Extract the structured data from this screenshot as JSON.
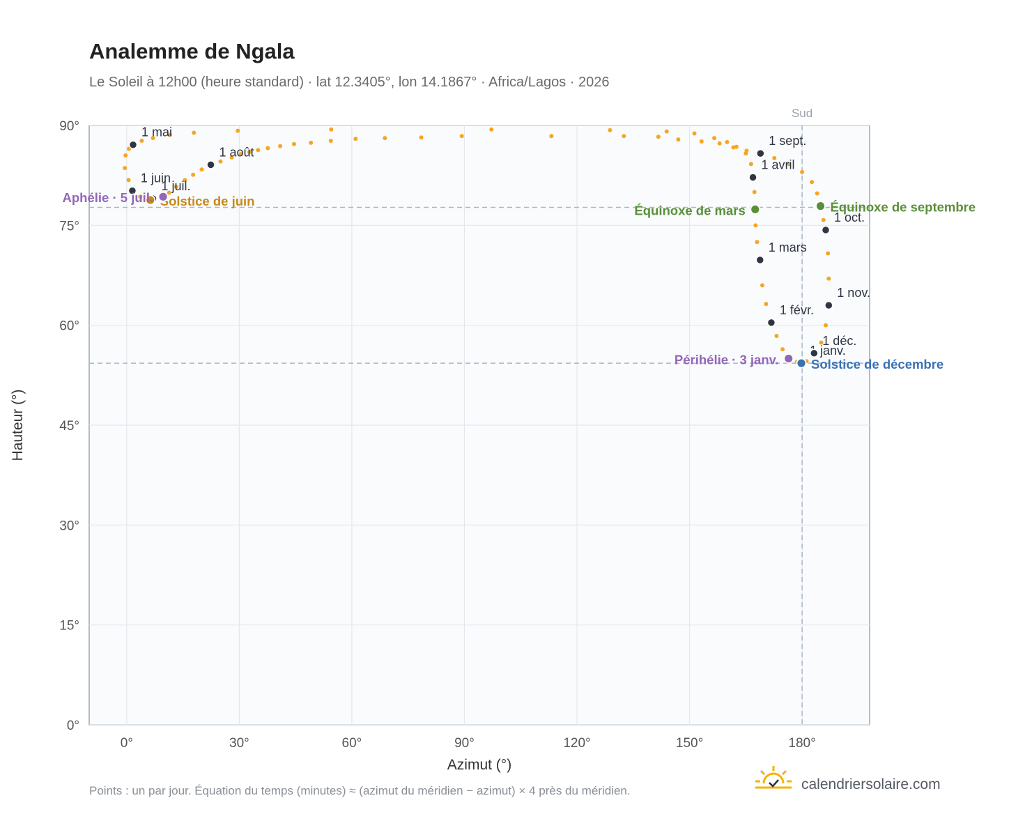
{
  "chart_data": {
    "type": "scatter",
    "title": "Analemme de Ngala",
    "subtitle": "Le Soleil à 12h00 (heure standard) · lat 12.3405°, lon 14.1867° · Africa/Lagos · 2026",
    "xlabel": "Azimut (°)",
    "ylabel": "Hauteur (°)",
    "xlim": [
      -10,
      198
    ],
    "ylim": [
      0,
      90
    ],
    "x_ticks": [
      0,
      30,
      60,
      90,
      120,
      150,
      180
    ],
    "x_tick_labels": [
      "0°",
      "30°",
      "60°",
      "90°",
      "120°",
      "150°",
      "180°"
    ],
    "y_ticks": [
      0,
      15,
      30,
      45,
      60,
      75,
      90
    ],
    "y_tick_labels": [
      "0°",
      "15°",
      "30°",
      "45°",
      "60°",
      "75°",
      "90°"
    ],
    "grid": true,
    "south_line": {
      "azimuth": 180,
      "label": "Sud"
    },
    "reference_altitudes": [
      77.7,
      54.3
    ],
    "series": [
      {
        "color": "#f5a623",
        "points_azimuth_altitude": [
          [
            178.6,
            54.5
          ],
          [
            176.4,
            55.0
          ],
          [
            174.8,
            56.4
          ],
          [
            173.2,
            58.4
          ],
          [
            171.8,
            60.4
          ],
          [
            170.4,
            63.2
          ],
          [
            169.4,
            66.0
          ],
          [
            168.6,
            69.8
          ],
          [
            168.0,
            72.5
          ],
          [
            167.6,
            75.0
          ],
          [
            167.5,
            77.4
          ],
          [
            167.3,
            80.0
          ],
          [
            167.0,
            82.2
          ],
          [
            166.4,
            84.2
          ],
          [
            165.0,
            85.8
          ],
          [
            162.5,
            86.8
          ],
          [
            160.0,
            87.5
          ],
          [
            156.6,
            88.1
          ],
          [
            151.3,
            88.8
          ],
          [
            143.9,
            89.1
          ],
          [
            128.8,
            89.3
          ],
          [
            113.2,
            88.4
          ],
          [
            97.2,
            89.4
          ],
          [
            89.3,
            88.4
          ],
          [
            78.5,
            88.2
          ],
          [
            68.8,
            88.1
          ],
          [
            61.0,
            88.0
          ],
          [
            54.5,
            89.4
          ],
          [
            54.4,
            87.7
          ],
          [
            49.1,
            87.4
          ],
          [
            44.6,
            87.2
          ],
          [
            40.9,
            86.9
          ],
          [
            37.6,
            86.6
          ],
          [
            35.0,
            86.3
          ],
          [
            32.7,
            86.0
          ],
          [
            30.4,
            85.7
          ],
          [
            28.0,
            85.2
          ],
          [
            25.0,
            84.6
          ],
          [
            22.4,
            84.1
          ],
          [
            20.0,
            83.4
          ],
          [
            17.7,
            82.6
          ],
          [
            15.5,
            81.8
          ],
          [
            13.2,
            80.8
          ],
          [
            11.3,
            79.9
          ],
          [
            9.7,
            79.3
          ],
          [
            6.3,
            78.8
          ],
          [
            3.6,
            79.3
          ],
          [
            1.8,
            80.2
          ],
          [
            0.5,
            81.8
          ],
          [
            -0.5,
            83.6
          ],
          [
            -0.3,
            85.5
          ],
          [
            0.6,
            86.5
          ],
          [
            1.7,
            87.1
          ],
          [
            4.0,
            87.7
          ],
          [
            7.0,
            88.1
          ],
          [
            11.5,
            88.6
          ],
          [
            17.9,
            88.9
          ],
          [
            29.6,
            89.2
          ],
          [
            132.5,
            88.4
          ],
          [
            141.7,
            88.3
          ],
          [
            147.0,
            87.9
          ],
          [
            153.2,
            87.6
          ],
          [
            158.0,
            87.3
          ],
          [
            161.7,
            86.7
          ],
          [
            165.2,
            86.2
          ],
          [
            168.9,
            85.8
          ],
          [
            172.6,
            85.1
          ],
          [
            176.5,
            84.2
          ],
          [
            180.0,
            83.0
          ],
          [
            182.6,
            81.5
          ],
          [
            184.0,
            79.8
          ],
          [
            184.9,
            77.9
          ],
          [
            185.7,
            75.8
          ],
          [
            186.3,
            74.3
          ],
          [
            186.9,
            70.8
          ],
          [
            187.1,
            67.0
          ],
          [
            187.0,
            63.0
          ],
          [
            186.3,
            60.0
          ],
          [
            185.1,
            57.4
          ],
          [
            183.2,
            55.8
          ],
          [
            181.2,
            54.6
          ],
          [
            179.8,
            54.3
          ]
        ]
      }
    ],
    "month_markers": [
      {
        "label": "1 janv.",
        "azimuth": 179.8,
        "altitude": 54.3
      },
      {
        "label": "1 févr.",
        "azimuth": 171.8,
        "altitude": 60.4
      },
      {
        "label": "1 mars",
        "azimuth": 168.8,
        "altitude": 69.8
      },
      {
        "label": "1 avril",
        "azimuth": 166.9,
        "altitude": 82.2
      },
      {
        "label": "1 mai",
        "azimuth": 1.7,
        "altitude": 87.1
      },
      {
        "label": "1 juin",
        "azimuth": 1.5,
        "altitude": 80.2
      },
      {
        "label": "1 juil.",
        "azimuth": 7.0,
        "altitude": 79.0
      },
      {
        "label": "1 août",
        "azimuth": 22.4,
        "altitude": 84.1
      },
      {
        "label": "1 sept.",
        "azimuth": 168.9,
        "altitude": 85.8
      },
      {
        "label": "1 oct.",
        "azimuth": 186.3,
        "altitude": 74.3
      },
      {
        "label": "1 nov.",
        "azimuth": 187.1,
        "altitude": 63.0
      },
      {
        "label": "1 déc.",
        "azimuth": 183.2,
        "altitude": 55.8
      }
    ],
    "events": [
      {
        "label": "Équinoxe de mars",
        "azimuth": 167.5,
        "altitude": 77.4,
        "color": "#5a8f3a"
      },
      {
        "label": "Équinoxe de septembre",
        "azimuth": 184.9,
        "altitude": 77.9,
        "color": "#5a8f3a"
      },
      {
        "label": "Solstice de juin",
        "azimuth": 6.3,
        "altitude": 78.8,
        "color": "#c8891a"
      },
      {
        "label": "Solstice de décembre",
        "azimuth": 179.8,
        "altitude": 54.3,
        "color": "#3a72b5"
      },
      {
        "label": "Aphélie · 5 juil.",
        "azimuth": 9.7,
        "altitude": 79.3,
        "color": "#9466b8"
      },
      {
        "label": "Périhélie · 3 janv.",
        "azimuth": 176.4,
        "altitude": 55.0,
        "color": "#9466b8"
      }
    ],
    "footnote": "Points : un par jour. Équation du temps (minutes) ≈ (azimut du méridien − azimut) × 4 près du méridien.",
    "brand": "calendriersolaire.com"
  }
}
